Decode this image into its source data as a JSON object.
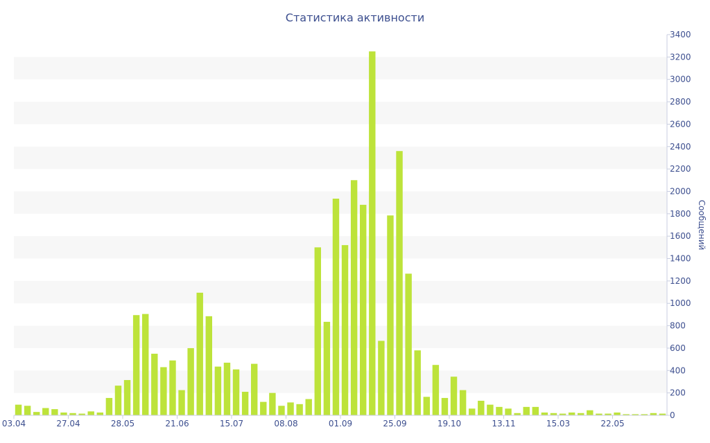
{
  "chart_data": {
    "type": "bar",
    "title": "Статистика активности",
    "ylabel": "Сообщений",
    "xlabel": "",
    "ylim": [
      0,
      3400
    ],
    "y_ticks": [
      0,
      200,
      400,
      600,
      800,
      1000,
      1200,
      1400,
      1600,
      1800,
      2000,
      2200,
      2400,
      2600,
      2800,
      3000,
      3200,
      3400
    ],
    "y_axis_side": "right",
    "grid": "alternating horizontal bands",
    "bar_color": "#bde33a",
    "text_color": "#3d4f8f",
    "x_tick_labels": [
      {
        "label": "03.04",
        "index": 0
      },
      {
        "label": "27.04",
        "index": 6
      },
      {
        "label": "28.05",
        "index": 12
      },
      {
        "label": "21.06",
        "index": 18
      },
      {
        "label": "15.07",
        "index": 24
      },
      {
        "label": "08.08",
        "index": 30
      },
      {
        "label": "01.09",
        "index": 36
      },
      {
        "label": "25.09",
        "index": 42
      },
      {
        "label": "19.10",
        "index": 48
      },
      {
        "label": "13.11",
        "index": 54
      },
      {
        "label": "15.03",
        "index": 60
      },
      {
        "label": "22.05",
        "index": 66
      }
    ],
    "values": [
      95,
      85,
      30,
      65,
      55,
      25,
      20,
      15,
      35,
      25,
      155,
      265,
      315,
      895,
      905,
      550,
      430,
      490,
      225,
      600,
      1095,
      885,
      435,
      470,
      410,
      210,
      460,
      120,
      200,
      85,
      115,
      100,
      145,
      1500,
      835,
      1935,
      1520,
      2100,
      1880,
      3250,
      665,
      1785,
      2360,
      1265,
      580,
      165,
      450,
      155,
      345,
      225,
      60,
      130,
      95,
      75,
      60,
      20,
      75,
      75,
      25,
      20,
      15,
      25,
      20,
      45,
      15,
      15,
      25,
      10,
      10,
      10,
      20,
      15
    ]
  }
}
